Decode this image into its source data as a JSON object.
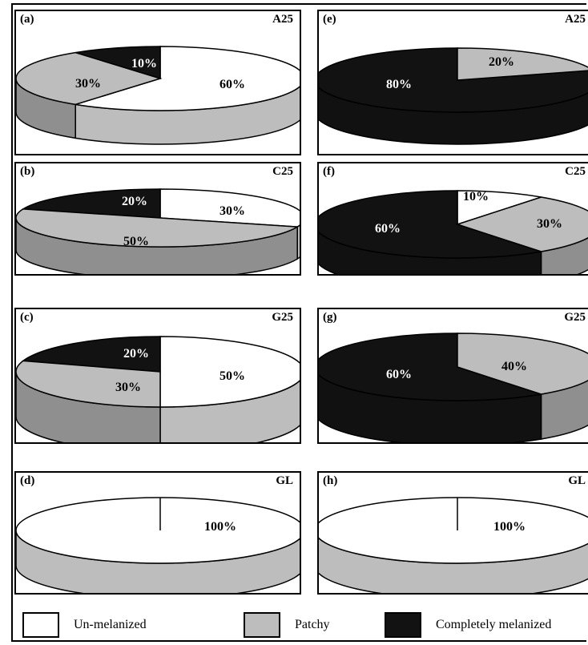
{
  "chart_data": {
    "type": "pie",
    "categories": [
      "Un-melanized",
      "Patchy",
      "Completely melanized"
    ],
    "colors": {
      "Un-melanized": "#ffffff",
      "Patchy": "#bdbdbd",
      "Completely melanized": "#121212",
      "side_gray": "#8f8f8f",
      "outline": "#000000"
    },
    "legend": [
      {
        "label": "Un-melanized",
        "color": "#ffffff"
      },
      {
        "label": "Patchy",
        "color": "#bdbdbd"
      },
      {
        "label": "Completely melanized",
        "color": "#121212"
      }
    ],
    "legend_placement": "bottom",
    "panels": [
      {
        "tag": "(a)",
        "code": "A25",
        "values": [
          60,
          30,
          10
        ],
        "labels": [
          "60%",
          "30%",
          "10%"
        ]
      },
      {
        "tag": "(b)",
        "code": "C25",
        "values": [
          30,
          50,
          20
        ],
        "labels": [
          "30%",
          "50%",
          "20%"
        ]
      },
      {
        "tag": "(c)",
        "code": "G25",
        "values": [
          50,
          30,
          20
        ],
        "labels": [
          "50%",
          "30%",
          "20%"
        ]
      },
      {
        "tag": "(d)",
        "code": "GL",
        "values": [
          100,
          0,
          0
        ],
        "labels": [
          "100%",
          "",
          ""
        ]
      },
      {
        "tag": "(e)",
        "code": "A25",
        "values": [
          0,
          20,
          80
        ],
        "labels": [
          "",
          "20%",
          "80%"
        ]
      },
      {
        "tag": "(f)",
        "code": "C25",
        "values": [
          10,
          30,
          60
        ],
        "labels": [
          "10%",
          "30%",
          "60%"
        ]
      },
      {
        "tag": "(g)",
        "code": "G25",
        "values": [
          0,
          40,
          60
        ],
        "labels": [
          "",
          "40%",
          "60%"
        ]
      },
      {
        "tag": "(h)",
        "code": "GL",
        "values": [
          100,
          0,
          0
        ],
        "labels": [
          "100%",
          "",
          ""
        ]
      }
    ]
  }
}
